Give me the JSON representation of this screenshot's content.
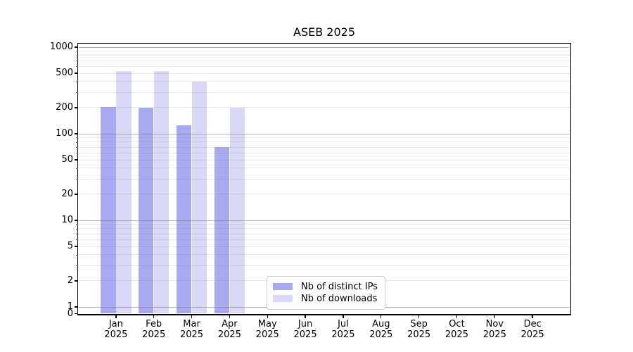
{
  "title": "ASEB 2025",
  "chart_data": {
    "type": "bar",
    "title": "ASEB 2025",
    "categories": [
      "Jan 2025",
      "Feb 2025",
      "Mar 2025",
      "Apr 2025",
      "May 2025",
      "Jun 2025",
      "Jul 2025",
      "Aug 2025",
      "Sep 2025",
      "Oct 2025",
      "Nov 2025",
      "Dec 2025"
    ],
    "series": [
      {
        "name": "Nb of distinct IPs",
        "color": "#a9a9f1",
        "values": [
          205,
          200,
          125,
          70,
          0,
          0,
          0,
          0,
          0,
          0,
          0,
          0
        ]
      },
      {
        "name": "Nb of downloads",
        "color": "#d9d9f7",
        "values": [
          525,
          525,
          400,
          200,
          0,
          0,
          0,
          0,
          0,
          0,
          0,
          0
        ]
      }
    ],
    "xlabel": "",
    "ylabel": "",
    "yscale": "log (linear segment between 0 and 1)",
    "ylim": [
      0,
      1000
    ],
    "ytick_labels": [
      "0",
      "1",
      "2",
      "5",
      "10",
      "20",
      "50",
      "100",
      "200",
      "500",
      "1000"
    ],
    "grid": "horizontal major and minor gridlines on",
    "legend_position": "lower center",
    "colors": {
      "background": "#ffffff",
      "spine": "#000000",
      "grid_major": "#bdbdbd",
      "grid_minor": "#e7e7e7",
      "legend_border": "#cccccc",
      "text": "#000000"
    }
  }
}
